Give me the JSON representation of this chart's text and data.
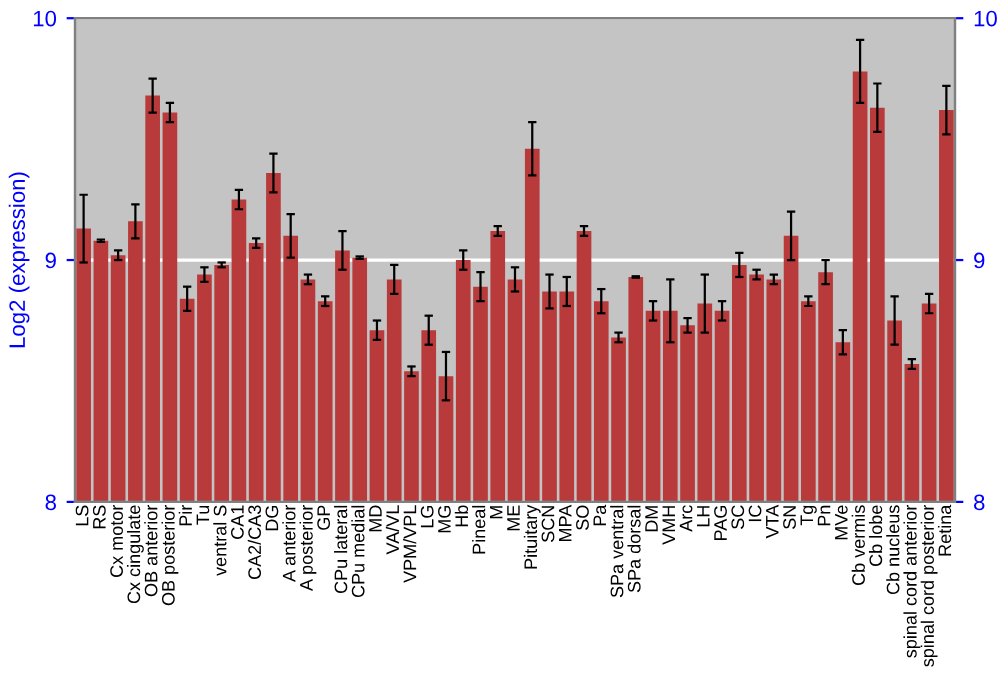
{
  "chart_data": {
    "type": "bar",
    "ylabel": "Log2 (expression)",
    "categories": [
      "LS",
      "RS",
      "Cx motor",
      "Cx cingulate",
      "OB anterior",
      "OB posterior",
      "Pir",
      "Tu",
      "ventral S",
      "CA1",
      "CA2/CA3",
      "DG",
      "A anterior",
      "A posterior",
      "GP",
      "CPu lateral",
      "CPu medial",
      "MD",
      "VA/VL",
      "VPM/VPL",
      "LG",
      "MG",
      "Hb",
      "Pineal",
      "M",
      "ME",
      "Pituitary",
      "SCN",
      "MPA",
      "SO",
      "Pa",
      "SPa ventral",
      "SPa dorsal",
      "DM",
      "VMH",
      "Arc",
      "LH",
      "PAG",
      "SC",
      "IC",
      "VTA",
      "SN",
      "Tg",
      "Pn",
      "MVe",
      "Cb vermis",
      "Cb lobe",
      "Cb nucleus",
      "spinal cord anterior",
      "spinal cord posterior",
      "Retina"
    ],
    "series": [
      {
        "color": "#b83a3a",
        "values": [
          9.13,
          9.08,
          9.02,
          9.16,
          9.68,
          9.61,
          8.84,
          8.94,
          8.98,
          9.25,
          9.07,
          9.36,
          9.1,
          8.92,
          8.83,
          9.04,
          9.01,
          8.71,
          8.92,
          8.54,
          8.71,
          8.52,
          9.0,
          8.89,
          9.12,
          8.92,
          9.46,
          8.87,
          8.87,
          9.12,
          8.83,
          8.68,
          8.93,
          8.79,
          8.79,
          8.73,
          8.82,
          8.79,
          8.98,
          8.94,
          8.92,
          9.1,
          8.83,
          8.95,
          8.66,
          9.78,
          9.63,
          8.75,
          8.57,
          8.82,
          9.62
        ],
        "errors": [
          0.14,
          0.005,
          0.02,
          0.07,
          0.07,
          0.04,
          0.05,
          0.03,
          0.01,
          0.04,
          0.02,
          0.08,
          0.09,
          0.02,
          0.02,
          0.08,
          0.005,
          0.04,
          0.06,
          0.02,
          0.06,
          0.1,
          0.04,
          0.06,
          0.02,
          0.05,
          0.11,
          0.07,
          0.06,
          0.02,
          0.05,
          0.02,
          0.003,
          0.04,
          0.13,
          0.03,
          0.12,
          0.04,
          0.05,
          0.02,
          0.02,
          0.1,
          0.02,
          0.05,
          0.05,
          0.13,
          0.1,
          0.1,
          0.02,
          0.04,
          0.1
        ]
      }
    ],
    "ylim": [
      8,
      10
    ],
    "yticks": [
      8,
      9,
      10
    ],
    "y2lim": [
      8,
      10
    ],
    "y2ticks": [
      8,
      9,
      10
    ],
    "grid": "y"
  }
}
